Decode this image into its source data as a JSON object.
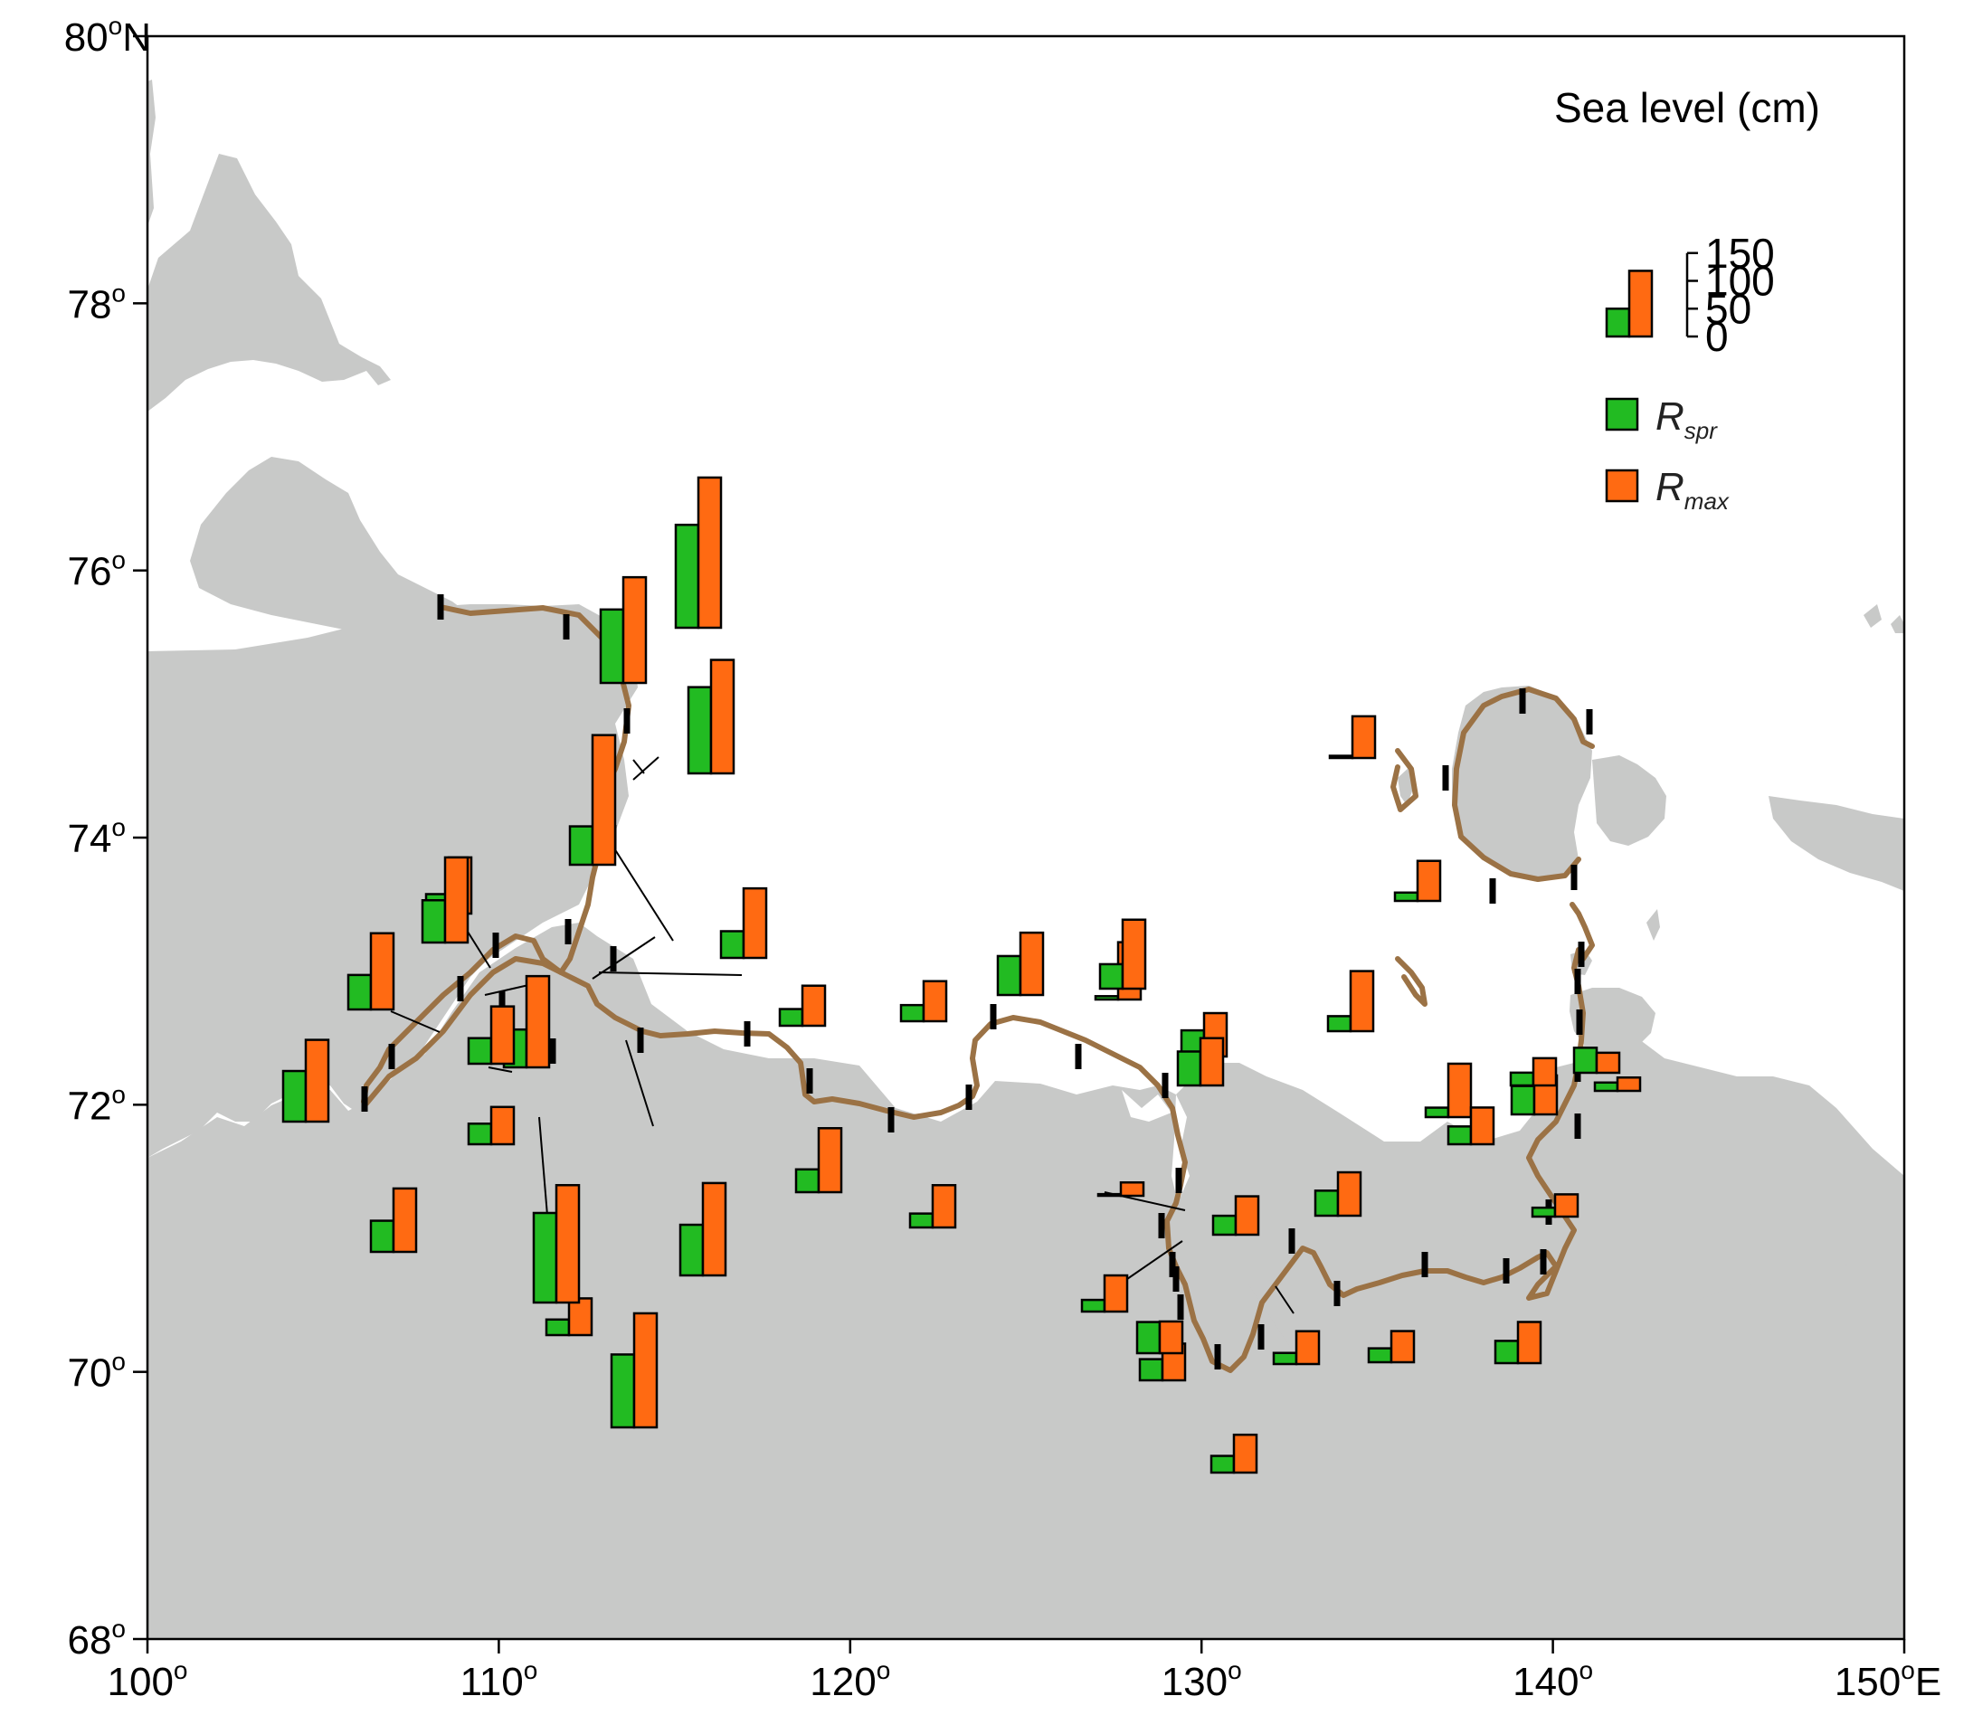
{
  "map": {
    "lon_range": [
      100,
      150
    ],
    "lat_range": [
      68,
      80
    ],
    "lon_ticks": [
      {
        "value": 100,
        "label": "100",
        "suffix": "o",
        "dir": ""
      },
      {
        "value": 110,
        "label": "110",
        "suffix": "o",
        "dir": ""
      },
      {
        "value": 120,
        "label": "120",
        "suffix": "o",
        "dir": ""
      },
      {
        "value": 130,
        "label": "130",
        "suffix": "o",
        "dir": ""
      },
      {
        "value": 140,
        "label": "140",
        "suffix": "o",
        "dir": ""
      },
      {
        "value": 150,
        "label": "150",
        "suffix": "o",
        "dir": "E"
      }
    ],
    "lat_ticks": [
      {
        "value": 68,
        "label": "68",
        "suffix": "o",
        "dir": ""
      },
      {
        "value": 70,
        "label": "70",
        "suffix": "o",
        "dir": ""
      },
      {
        "value": 72,
        "label": "72",
        "suffix": "o",
        "dir": ""
      },
      {
        "value": 74,
        "label": "74",
        "suffix": "o",
        "dir": ""
      },
      {
        "value": 76,
        "label": "76",
        "suffix": "o",
        "dir": ""
      },
      {
        "value": 78,
        "label": "78",
        "suffix": "o",
        "dir": ""
      },
      {
        "value": 80,
        "label": "80",
        "suffix": "o",
        "dir": "N"
      }
    ],
    "colors": {
      "land": "#c8c9c8",
      "sea": "#ffffff",
      "coastline_segment": "#9b7245",
      "segment_marker": "#000000",
      "r_spr": "#22bb22",
      "r_max": "#ff6a12"
    }
  },
  "legend": {
    "title": "Sea level (cm)",
    "scale_ticks": [
      "150",
      "100",
      "50",
      "0"
    ],
    "scale_values": [
      150,
      100,
      50,
      0
    ],
    "example_bars": {
      "r_spr": 50,
      "r_max": 118
    },
    "items": [
      {
        "symbol": "R",
        "subscript": "spr",
        "color": "#22bb22"
      },
      {
        "symbol": "R",
        "subscript": "max",
        "color": "#ff6a12"
      }
    ]
  },
  "chart_data": {
    "type": "bar",
    "unit": "cm",
    "series": [
      {
        "name": "R_spr",
        "values": [
          91,
          62,
          56,
          35,
          76,
          37,
          68,
          46,
          28,
          161,
          132,
          69,
          185,
          155,
          131,
          91,
          48,
          30,
          41,
          29,
          25,
          70,
          6,
          44,
          47,
          61,
          34,
          21,
          3,
          38,
          27,
          4,
          15,
          45,
          20,
          30,
          56,
          17,
          32,
          51,
          40,
          25,
          23,
          16,
          45,
          15
        ]
      },
      {
        "name": "R_max",
        "values": [
          147,
          137,
          114,
          101,
          153,
          67,
          164,
          103,
          66,
          211,
          190,
          233,
          270,
          204,
          205,
          166,
          125,
          72,
          115,
          72,
          76,
          112,
          103,
          124,
          78,
          85,
          69,
          65,
          24,
          66,
          108,
          75,
          72,
          78,
          59,
          68,
          57,
          96,
          66,
          70,
          74,
          56,
          49,
          40,
          36,
          24
        ]
      }
    ]
  }
}
